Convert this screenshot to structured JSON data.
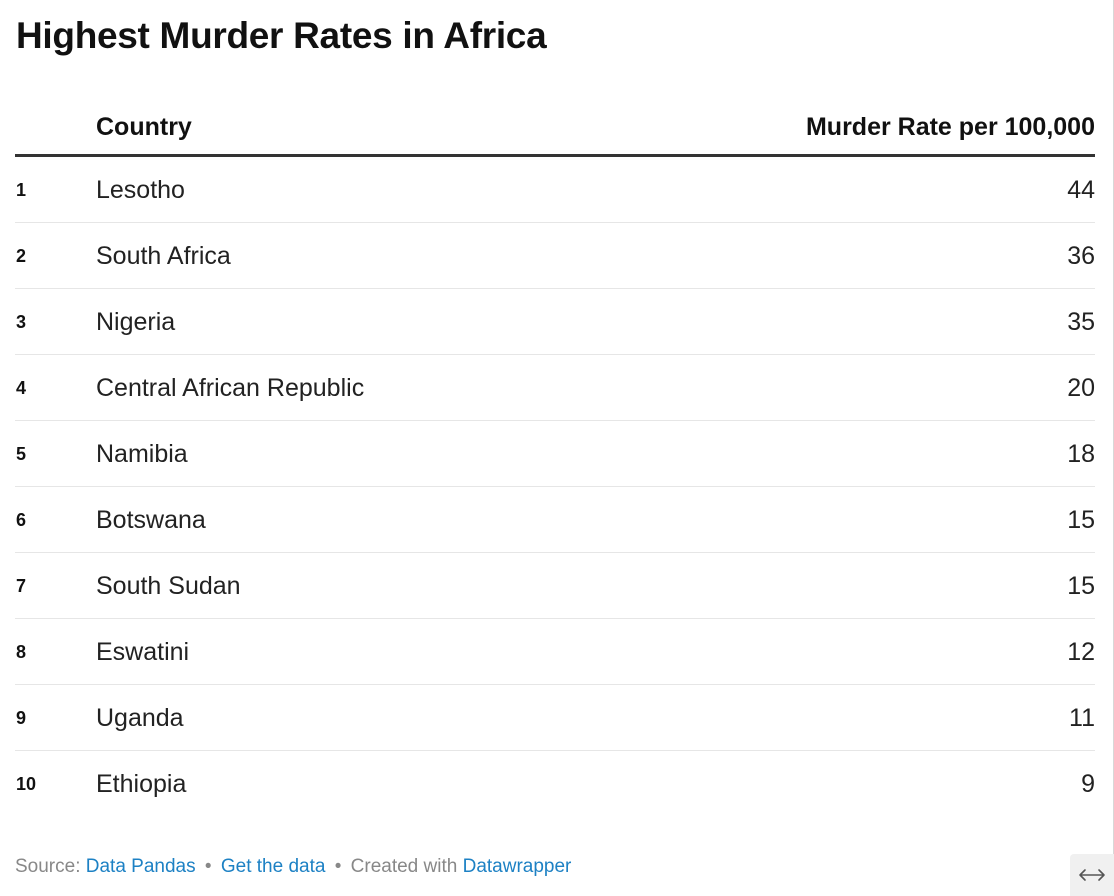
{
  "chart_data": {
    "type": "table",
    "title": "Highest Murder Rates in Africa",
    "columns": [
      "",
      "Country",
      "Murder Rate per 100,000"
    ],
    "rows": [
      {
        "rank": "1",
        "country": "Lesotho",
        "value": 44
      },
      {
        "rank": "2",
        "country": "South Africa",
        "value": 36
      },
      {
        "rank": "3",
        "country": "Nigeria",
        "value": 35
      },
      {
        "rank": "4",
        "country": "Central African Republic",
        "value": 20
      },
      {
        "rank": "5",
        "country": "Namibia",
        "value": 18
      },
      {
        "rank": "6",
        "country": "Botswana",
        "value": 15
      },
      {
        "rank": "7",
        "country": "South Sudan",
        "value": 15
      },
      {
        "rank": "8",
        "country": "Eswatini",
        "value": 12
      },
      {
        "rank": "9",
        "country": "Uganda",
        "value": 11
      },
      {
        "rank": "10",
        "country": "Ethiopia",
        "value": 9
      }
    ]
  },
  "footer": {
    "source_label": "Source:",
    "source_link": "Data Pandas",
    "separator": "•",
    "get_data_link": "Get the data",
    "created_label": "Created with",
    "created_link": "Datawrapper"
  },
  "controls": {
    "expand_icon": "horizontal-arrows-icon"
  },
  "colors": {
    "link": "#1d81c4",
    "header_rule": "#333333",
    "row_rule": "#e6e6e6"
  }
}
